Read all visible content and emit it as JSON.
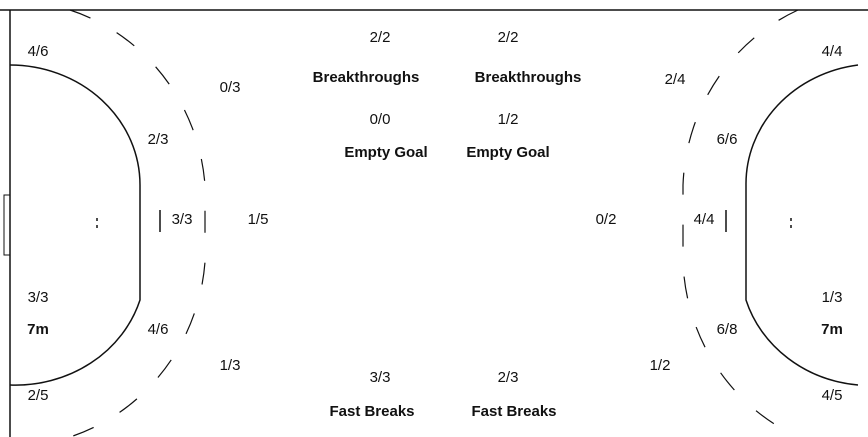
{
  "left": {
    "zones": [
      "4/6",
      "0/3",
      "2/3",
      "3/3",
      "1/5",
      "4/6",
      "1/3",
      "2/5"
    ],
    "seven_m": {
      "value": "3/3",
      "label": "7m"
    },
    "breakthroughs": {
      "value": "2/2",
      "label": "Breakthroughs"
    },
    "empty_goal": {
      "value": "0/0",
      "label": "Empty Goal"
    },
    "fast_breaks": {
      "value": "3/3",
      "label": "Fast Breaks"
    }
  },
  "right": {
    "zones": [
      "4/4",
      "2/4",
      "6/6",
      "4/4",
      "0/2",
      "6/8",
      "1/2",
      "4/5"
    ],
    "seven_m": {
      "value": "1/3",
      "label": "7m"
    },
    "breakthroughs": {
      "value": "2/2",
      "label": "Breakthroughs"
    },
    "empty_goal": {
      "value": "1/2",
      "label": "Empty Goal"
    },
    "fast_breaks": {
      "value": "2/3",
      "label": "Fast Breaks"
    }
  }
}
